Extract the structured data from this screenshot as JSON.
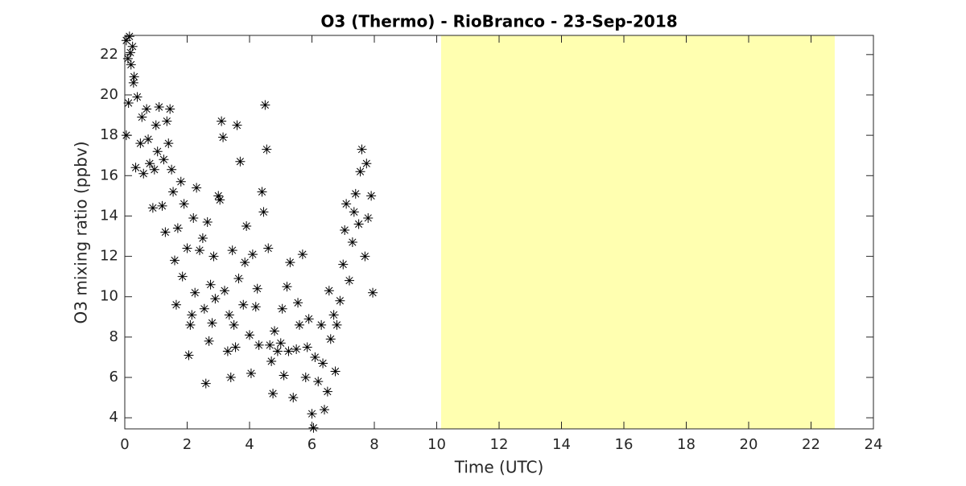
{
  "chart_data": {
    "type": "scatter",
    "title": "O3 (Thermo) - RioBranco - 23-Sep-2018",
    "xlabel": "Time (UTC)",
    "ylabel": "O3 mixing ratio (ppbv)",
    "color": "#000000",
    "shaded_region": [
      10.14,
      22.76
    ],
    "shaded_color": "#ffffb0",
    "xlim": [
      0,
      24
    ],
    "ylim": [
      3.45,
      22.95
    ],
    "xticks": [
      0,
      2,
      4,
      6,
      8,
      10,
      12,
      14,
      16,
      18,
      20,
      22,
      24
    ],
    "yticks": [
      4,
      6,
      8,
      10,
      12,
      14,
      16,
      18,
      20,
      22
    ],
    "x": [
      0.05,
      0.1,
      0.15,
      0.2,
      0.25,
      0.3,
      0.05,
      0.12,
      0.18,
      0.28,
      0.35,
      0.4,
      0.5,
      0.55,
      0.6,
      0.7,
      0.75,
      0.8,
      0.9,
      0.95,
      1.0,
      1.05,
      1.1,
      1.2,
      1.25,
      1.3,
      1.35,
      1.4,
      1.45,
      1.5,
      1.55,
      1.6,
      1.65,
      1.7,
      1.8,
      1.85,
      1.9,
      2.0,
      2.05,
      2.1,
      2.15,
      2.2,
      2.25,
      2.3,
      2.4,
      2.5,
      2.55,
      2.6,
      2.65,
      2.7,
      2.75,
      2.8,
      2.85,
      2.9,
      3.0,
      3.05,
      3.1,
      3.15,
      3.2,
      3.3,
      3.35,
      3.4,
      3.45,
      3.5,
      3.55,
      3.6,
      3.65,
      3.7,
      3.8,
      3.85,
      3.9,
      4.0,
      4.05,
      4.1,
      4.2,
      4.25,
      4.3,
      4.4,
      4.45,
      4.5,
      4.55,
      4.6,
      4.65,
      4.7,
      4.75,
      4.8,
      4.9,
      5.0,
      5.05,
      5.1,
      5.2,
      5.25,
      5.3,
      5.4,
      5.5,
      5.55,
      5.6,
      5.7,
      5.8,
      5.85,
      5.9,
      6.0,
      6.05,
      6.1,
      6.2,
      6.3,
      6.35,
      6.4,
      6.5,
      6.55,
      6.6,
      6.7,
      6.75,
      6.8,
      6.9,
      7.0,
      7.05,
      7.1,
      7.2,
      7.3,
      7.35,
      7.4,
      7.5,
      7.55,
      7.6,
      7.7,
      7.75,
      7.8,
      7.9,
      7.95
    ],
    "values": [
      22.7,
      21.8,
      22.9,
      21.5,
      22.4,
      20.9,
      18.0,
      19.6,
      22.1,
      20.6,
      16.4,
      19.9,
      17.6,
      18.9,
      16.1,
      19.3,
      17.8,
      16.6,
      14.4,
      16.3,
      18.5,
      17.2,
      19.4,
      14.5,
      16.8,
      13.2,
      18.7,
      17.6,
      19.3,
      16.3,
      15.2,
      11.8,
      9.6,
      13.4,
      15.7,
      11.0,
      14.6,
      12.4,
      7.1,
      8.6,
      9.1,
      13.9,
      10.2,
      15.4,
      12.3,
      12.9,
      9.4,
      5.7,
      13.7,
      7.8,
      10.6,
      8.7,
      12.0,
      9.9,
      15.0,
      14.8,
      18.7,
      17.9,
      10.3,
      7.3,
      9.1,
      6.0,
      12.3,
      8.6,
      7.5,
      18.5,
      10.9,
      16.7,
      9.6,
      11.7,
      13.5,
      8.1,
      6.2,
      12.1,
      9.5,
      10.4,
      7.6,
      15.2,
      14.2,
      19.5,
      17.3,
      12.4,
      7.6,
      6.8,
      5.2,
      8.3,
      7.3,
      7.7,
      9.4,
      6.1,
      10.5,
      7.3,
      11.7,
      5.0,
      7.4,
      9.7,
      8.6,
      12.1,
      6.0,
      7.5,
      8.9,
      4.2,
      3.5,
      7.0,
      5.8,
      8.6,
      6.7,
      4.4,
      5.3,
      10.3,
      7.9,
      9.1,
      6.3,
      8.6,
      9.8,
      11.6,
      13.3,
      14.6,
      10.8,
      12.7,
      14.2,
      15.1,
      13.6,
      16.2,
      17.3,
      12.0,
      16.6,
      13.9,
      15.0,
      10.2
    ]
  }
}
